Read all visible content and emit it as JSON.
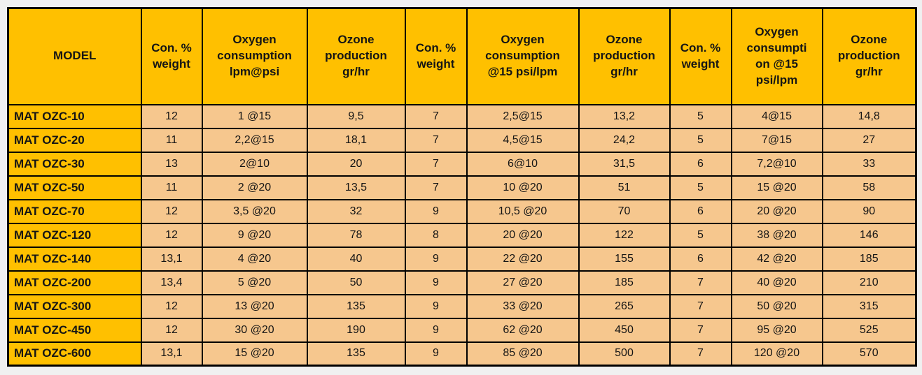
{
  "colors": {
    "page_bg": "#F0F0F0",
    "header_bg": "#FFC000",
    "cell_bg": "#F6C78E",
    "border": "#000000",
    "text": "#151515"
  },
  "table": {
    "headers": [
      {
        "id": "model",
        "label": "MODEL",
        "lines": [
          "MODEL"
        ]
      },
      {
        "id": "con-weight-1",
        "label": "Con. % weight",
        "lines": [
          "Con. %",
          "weight"
        ]
      },
      {
        "id": "oxygen-consumption-1",
        "label": "Oxygen consumption lpm@psi",
        "lines": [
          "Oxygen",
          "consumption",
          "lpm@psi"
        ]
      },
      {
        "id": "ozone-production-1",
        "label": "Ozone production gr/hr",
        "lines": [
          "Ozone",
          "production",
          "gr/hr"
        ]
      },
      {
        "id": "con-weight-2",
        "label": "Con. % weight",
        "lines": [
          "Con. %",
          "weight"
        ]
      },
      {
        "id": "oxygen-consumption-2",
        "label": "Oxygen consumption @15 psi/lpm",
        "lines": [
          "Oxygen",
          "consumption",
          "@15 psi/lpm"
        ]
      },
      {
        "id": "ozone-production-2",
        "label": "Ozone production gr/hr",
        "lines": [
          "Ozone",
          "production",
          "gr/hr"
        ]
      },
      {
        "id": "con-weight-3",
        "label": "Con. % weight",
        "lines": [
          "Con. %",
          "weight"
        ]
      },
      {
        "id": "oxygen-consumption-3",
        "label": "Oxygen consumpti on @15 psi/lpm",
        "lines": [
          "Oxygen",
          "consumpti",
          "on @15",
          "psi/lpm"
        ]
      },
      {
        "id": "ozone-production-3",
        "label": "Ozone production gr/hr",
        "lines": [
          "Ozone",
          "production",
          "gr/hr"
        ]
      }
    ],
    "rows": [
      [
        "MAT OZC-10",
        "12",
        "1 @15",
        "9,5",
        "7",
        "2,5@15",
        "13,2",
        "5",
        "4@15",
        "14,8"
      ],
      [
        "MAT OZC-20",
        "11",
        "2,2@15",
        "18,1",
        "7",
        "4,5@15",
        "24,2",
        "5",
        "7@15",
        "27"
      ],
      [
        "MAT OZC-30",
        "13",
        "2@10",
        "20",
        "7",
        "6@10",
        "31,5",
        "6",
        "7,2@10",
        "33"
      ],
      [
        "MAT OZC-50",
        "11",
        "2 @20",
        "13,5",
        "7",
        "10 @20",
        "51",
        "5",
        "15 @20",
        "58"
      ],
      [
        "MAT OZC-70",
        "12",
        "3,5 @20",
        "32",
        "9",
        "10,5 @20",
        "70",
        "6",
        "20 @20",
        "90"
      ],
      [
        "MAT OZC-120",
        "12",
        "9 @20",
        "78",
        "8",
        "20 @20",
        "122",
        "5",
        "38 @20",
        "146"
      ],
      [
        "MAT OZC-140",
        "13,1",
        "4 @20",
        "40",
        "9",
        "22 @20",
        "155",
        "6",
        "42 @20",
        "185"
      ],
      [
        "MAT OZC-200",
        "13,4",
        "5 @20",
        "50",
        "9",
        "27 @20",
        "185",
        "7",
        "40 @20",
        "210"
      ],
      [
        "MAT OZC-300",
        "12",
        "13 @20",
        "135",
        "9",
        "33 @20",
        "265",
        "7",
        "50 @20",
        "315"
      ],
      [
        "MAT OZC-450",
        "12",
        "30 @20",
        "190",
        "9",
        "62 @20",
        "450",
        "7",
        "95 @20",
        "525"
      ],
      [
        "MAT OZC-600",
        "13,1",
        "15 @20",
        "135",
        "9",
        "85 @20",
        "500",
        "7",
        "120 @20",
        "570"
      ]
    ]
  }
}
